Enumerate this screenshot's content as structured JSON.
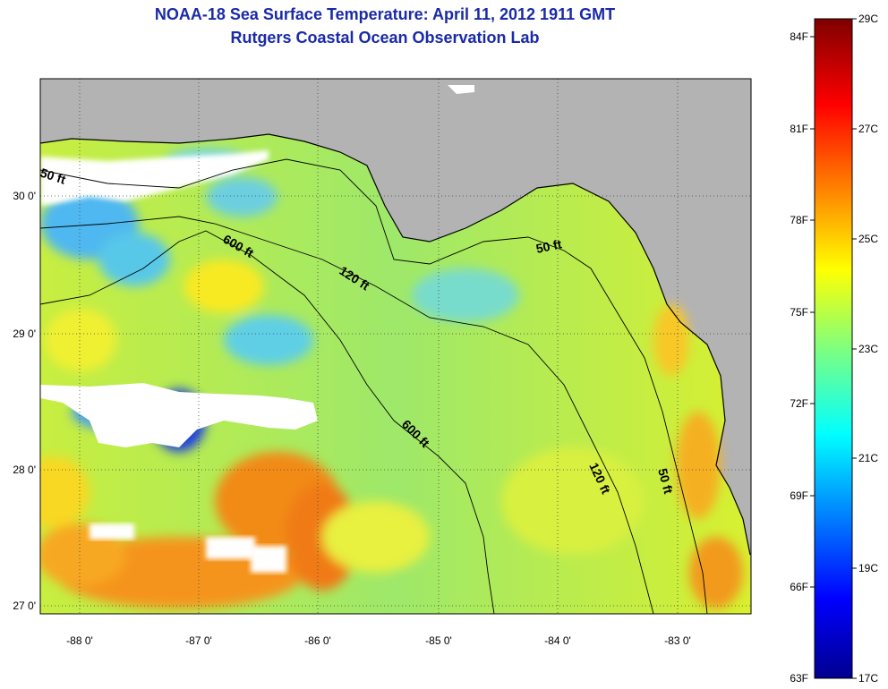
{
  "title": {
    "line1": "NOAA-18 Sea Surface Temperature:  April 11, 2012 1911 GMT",
    "line2": "Rutgers Coastal Ocean Observation Lab"
  },
  "axes": {
    "lat_ticks": [
      "30 0'",
      "29 0'",
      "28 0'",
      "27 0'"
    ],
    "lon_ticks": [
      "-88 0'",
      "-87 0'",
      "-86 0'",
      "-85 0'",
      "-84 0'",
      "-83 0'"
    ]
  },
  "contours": {
    "fifty": "50 ft",
    "onetwenty": "120 ft",
    "sixhundred": "600 ft"
  },
  "colorbar": {
    "f_labels": [
      "84F",
      "81F",
      "78F",
      "75F",
      "72F",
      "69F",
      "66F",
      "63F"
    ],
    "c_labels": [
      "29C",
      "27C",
      "25C",
      "23C",
      "21C",
      "19C",
      "17C"
    ]
  },
  "colors": {
    "land": "#b3b3b3",
    "title": "#1a2aa8",
    "cloud": "#ffffff"
  }
}
